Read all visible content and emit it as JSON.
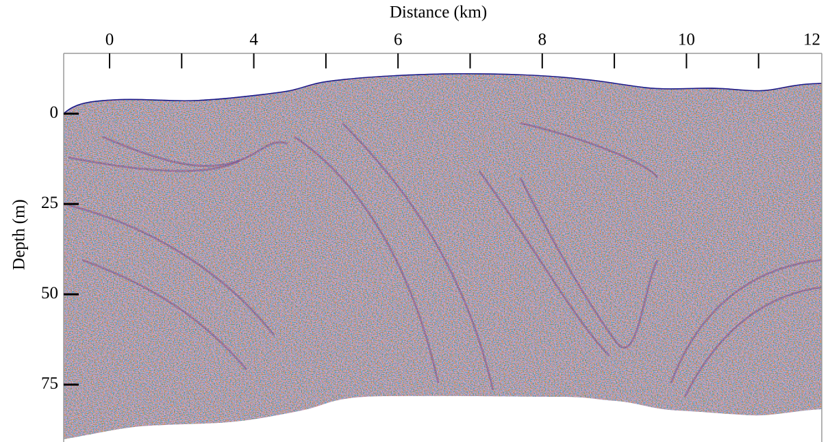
{
  "chart_data": {
    "type": "seismic-section",
    "x_label": "Distance (km)",
    "y_label": "Depth (m)",
    "categories": [
      "0",
      null,
      "4",
      null,
      "6",
      null,
      "8",
      null,
      "10",
      null,
      "12"
    ],
    "ylim": [
      -16.7,
      90.9
    ],
    "yticks": [
      0,
      25,
      50,
      75
    ]
  }
}
